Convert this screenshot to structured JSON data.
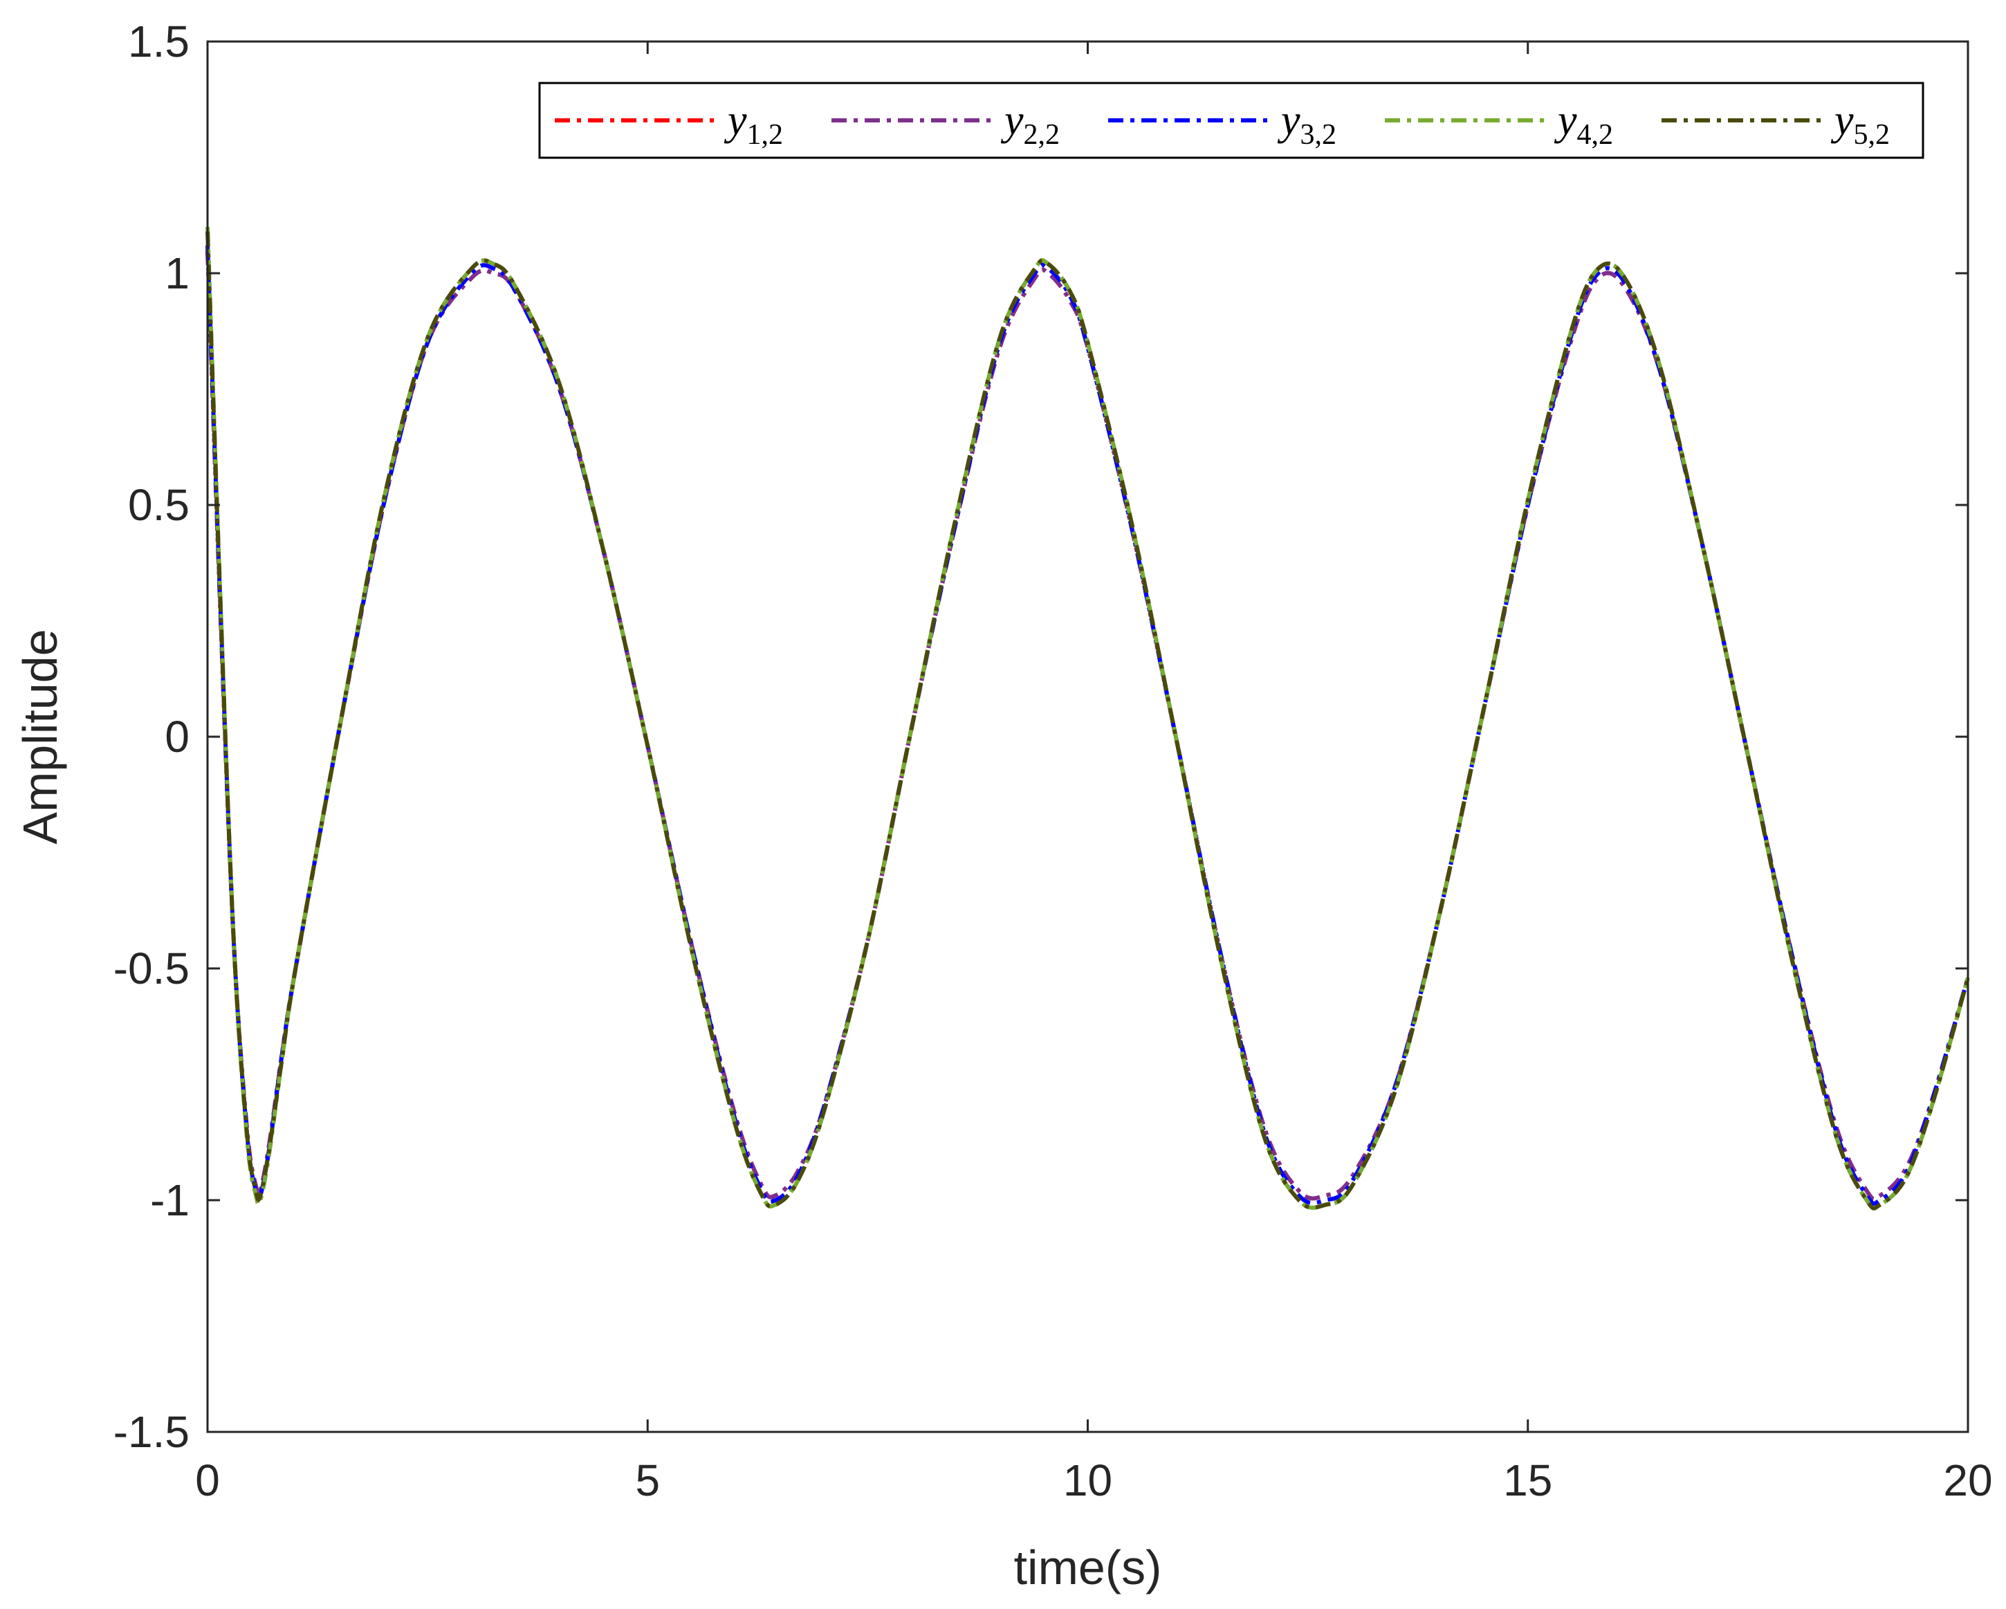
{
  "chart_data": {
    "type": "line",
    "title": "",
    "xlabel": "time(s)",
    "ylabel": "Amplitude",
    "xlim": [
      0,
      20
    ],
    "ylim": [
      -1.5,
      1.5
    ],
    "xticks": [
      0,
      5,
      10,
      15,
      20
    ],
    "yticks": [
      -1.5,
      -1,
      -0.5,
      0,
      0.5,
      1,
      1.5
    ],
    "xtick_labels": [
      "0",
      "5",
      "10",
      "15",
      "20"
    ],
    "ytick_labels": [
      "-1.5",
      "-1",
      "-0.5",
      "0",
      "0.5",
      "1",
      "1.5"
    ],
    "grid": false,
    "legend_position": "top-right",
    "legend_orientation": "horizontal",
    "line_style": "dash-dot",
    "x": [
      0,
      0.15,
      0.3,
      0.45,
      0.55,
      0.6,
      0.7,
      0.85,
      1.0,
      1.5,
      2.0,
      2.5,
      3.0,
      3.25,
      3.5,
      4.0,
      4.5,
      5.0,
      5.5,
      6.0,
      6.3,
      6.45,
      6.7,
      7.0,
      7.5,
      8.0,
      8.5,
      9.0,
      9.4,
      9.55,
      9.8,
      10.0,
      10.5,
      11.0,
      11.5,
      12.0,
      12.4,
      12.7,
      13.0,
      13.5,
      14.0,
      14.5,
      15.0,
      15.5,
      15.8,
      16.1,
      16.5,
      17.0,
      17.5,
      18.0,
      18.5,
      18.85,
      19.0,
      19.3,
      19.6,
      20.0
    ],
    "series": [
      {
        "name": "y_{1,2}",
        "color": "#ff0000",
        "values": [
          1.05,
          0.25,
          -0.45,
          -0.85,
          -0.97,
          -0.98,
          -0.88,
          -0.68,
          -0.5,
          0.02,
          0.5,
          0.85,
          0.99,
          1.0,
          0.96,
          0.75,
          0.4,
          -0.02,
          -0.45,
          -0.82,
          -0.97,
          -0.99,
          -0.94,
          -0.8,
          -0.44,
          0.02,
          0.46,
          0.84,
          0.99,
          1.0,
          0.94,
          0.84,
          0.45,
          0.0,
          -0.46,
          -0.84,
          -0.98,
          -0.99,
          -0.95,
          -0.75,
          -0.38,
          0.06,
          0.5,
          0.86,
          0.99,
          0.97,
          0.79,
          0.4,
          -0.04,
          -0.47,
          -0.84,
          -0.98,
          -0.99,
          -0.93,
          -0.78,
          -0.52
        ]
      },
      {
        "name": "y_{2,2}",
        "color": "#7e2f8e",
        "values": [
          1.05,
          0.25,
          -0.45,
          -0.85,
          -0.97,
          -0.98,
          -0.88,
          -0.68,
          -0.5,
          0.02,
          0.5,
          0.85,
          0.99,
          1.0,
          0.96,
          0.75,
          0.4,
          -0.02,
          -0.45,
          -0.82,
          -0.97,
          -0.99,
          -0.94,
          -0.8,
          -0.44,
          0.02,
          0.46,
          0.84,
          0.99,
          1.0,
          0.94,
          0.84,
          0.45,
          0.0,
          -0.46,
          -0.84,
          -0.98,
          -0.99,
          -0.95,
          -0.75,
          -0.38,
          0.06,
          0.5,
          0.86,
          0.99,
          0.97,
          0.79,
          0.4,
          -0.04,
          -0.47,
          -0.84,
          -0.98,
          -0.99,
          -0.93,
          -0.78,
          -0.52
        ]
      },
      {
        "name": "y_{3,2}",
        "color": "#0000ff",
        "values": [
          1.06,
          0.26,
          -0.45,
          -0.86,
          -0.98,
          -0.99,
          -0.89,
          -0.68,
          -0.5,
          0.02,
          0.5,
          0.85,
          1.0,
          1.01,
          0.96,
          0.75,
          0.4,
          -0.02,
          -0.45,
          -0.83,
          -0.98,
          -1.0,
          -0.95,
          -0.8,
          -0.44,
          0.02,
          0.46,
          0.85,
          1.0,
          1.01,
          0.95,
          0.84,
          0.45,
          0.0,
          -0.46,
          -0.85,
          -0.99,
          -1.0,
          -0.96,
          -0.75,
          -0.38,
          0.06,
          0.5,
          0.87,
          1.0,
          0.98,
          0.79,
          0.4,
          -0.04,
          -0.47,
          -0.85,
          -0.99,
          -1.0,
          -0.94,
          -0.78,
          -0.52
        ]
      },
      {
        "name": "y_{4,2}",
        "color": "#77ac30",
        "values": [
          1.1,
          0.28,
          -0.45,
          -0.87,
          -0.99,
          -1.0,
          -0.9,
          -0.69,
          -0.5,
          0.02,
          0.51,
          0.86,
          1.01,
          1.02,
          0.97,
          0.76,
          0.4,
          -0.02,
          -0.46,
          -0.84,
          -0.99,
          -1.01,
          -0.96,
          -0.81,
          -0.44,
          0.02,
          0.47,
          0.86,
          1.01,
          1.02,
          0.96,
          0.85,
          0.46,
          0.0,
          -0.47,
          -0.86,
          -1.0,
          -1.01,
          -0.97,
          -0.76,
          -0.38,
          0.06,
          0.51,
          0.88,
          1.01,
          0.99,
          0.8,
          0.4,
          -0.04,
          -0.48,
          -0.86,
          -1.0,
          -1.01,
          -0.95,
          -0.79,
          -0.52
        ]
      },
      {
        "name": "y_{5,2}",
        "color": "#4a4a0a",
        "values": [
          1.09,
          0.27,
          -0.45,
          -0.86,
          -0.98,
          -0.99,
          -0.89,
          -0.69,
          -0.5,
          0.02,
          0.51,
          0.86,
          1.01,
          1.02,
          0.97,
          0.76,
          0.4,
          -0.02,
          -0.46,
          -0.84,
          -0.99,
          -1.01,
          -0.96,
          -0.81,
          -0.44,
          0.02,
          0.47,
          0.86,
          1.01,
          1.02,
          0.96,
          0.85,
          0.46,
          0.0,
          -0.47,
          -0.86,
          -1.0,
          -1.01,
          -0.97,
          -0.76,
          -0.38,
          0.06,
          0.51,
          0.88,
          1.01,
          0.99,
          0.8,
          0.4,
          -0.04,
          -0.48,
          -0.86,
          -1.0,
          -1.01,
          -0.95,
          -0.79,
          -0.52
        ]
      }
    ],
    "legend": [
      {
        "symbol": "y",
        "subscript": "1,2"
      },
      {
        "symbol": "y",
        "subscript": "2,2"
      },
      {
        "symbol": "y",
        "subscript": "3,2"
      },
      {
        "symbol": "y",
        "subscript": "4,2"
      },
      {
        "symbol": "y",
        "subscript": "5,2"
      }
    ]
  }
}
